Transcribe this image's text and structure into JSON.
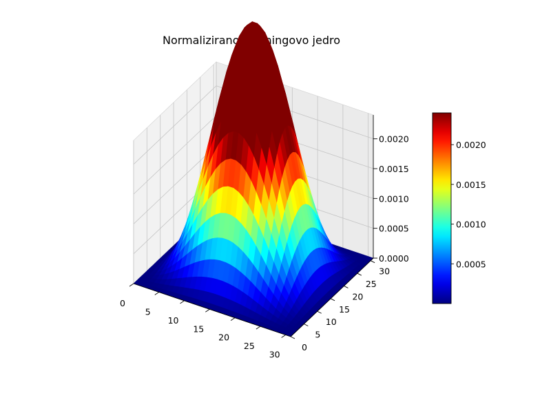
{
  "chart_data": {
    "type": "surface3d",
    "title": "Normalizirano Hanningovo jedro",
    "function": "hanning(32) outer hanning(32), normalized to unit sum",
    "grid_size": 32,
    "x_range": [
      0,
      31
    ],
    "y_range": [
      0,
      31
    ],
    "zlim": [
      0,
      0.0024
    ],
    "z_max": 0.00239,
    "colormap": "jet",
    "color_range": [
      0,
      0.0024
    ],
    "grid": true,
    "x_ticks": [
      "0",
      "5",
      "10",
      "15",
      "20",
      "25",
      "30"
    ],
    "y_ticks": [
      "0",
      "5",
      "10",
      "15",
      "20",
      "25",
      "30"
    ],
    "z_ticks": [
      "0.0000",
      "0.0005",
      "0.0010",
      "0.0015",
      "0.0020"
    ],
    "colorbar": {
      "placement": "right",
      "ticks": [
        "0.0005",
        "0.0010",
        "0.0015",
        "0.0020"
      ]
    }
  }
}
